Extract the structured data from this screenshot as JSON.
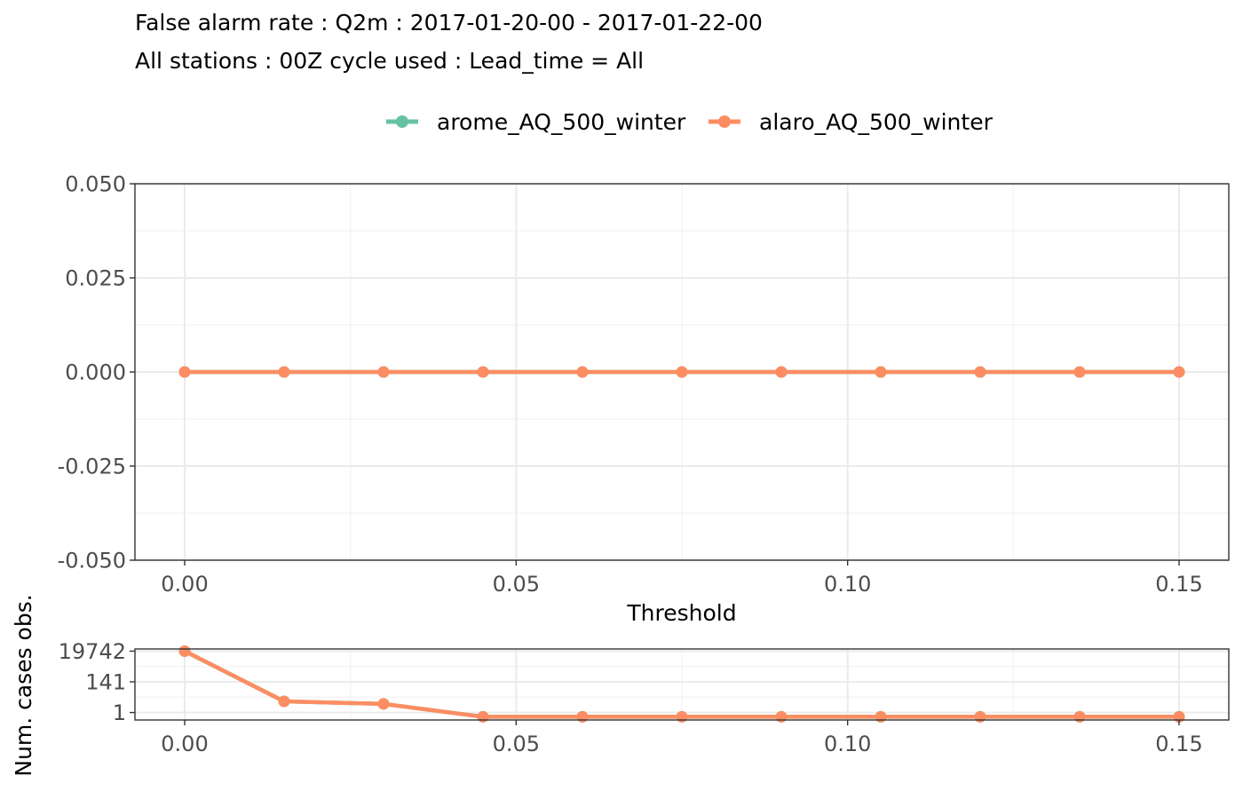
{
  "title": {
    "line1": "False alarm rate : Q2m : 2017-01-20-00 - 2017-01-22-00",
    "line2": "All stations : 00Z cycle used : Lead_time = All"
  },
  "legend": {
    "position": "top",
    "items": [
      {
        "label": "arome_AQ_500_winter",
        "color": "#66c2a5"
      },
      {
        "label": "alaro_AQ_500_winter",
        "color": "#fc8d62"
      }
    ]
  },
  "chart_data": [
    {
      "type": "line",
      "panel": "main",
      "xlabel": "Threshold",
      "ylabel": "",
      "xlim": [
        -0.0075,
        0.1575
      ],
      "ylim": [
        -0.05,
        0.05
      ],
      "x_ticks": [
        0.0,
        0.05,
        0.1,
        0.15
      ],
      "x_tick_labels": [
        "0.00",
        "0.05",
        "0.10",
        "0.15"
      ],
      "y_ticks": [
        -0.05,
        -0.025,
        0.0,
        0.025,
        0.05
      ],
      "y_tick_labels": [
        "-0.050",
        "-0.025",
        "0.000",
        "0.025",
        "0.050"
      ],
      "grid": true,
      "series": [
        {
          "name": "arome_AQ_500_winter",
          "color": "#66c2a5",
          "x": [
            0.0,
            0.015,
            0.03,
            0.045,
            0.06,
            0.075,
            0.09,
            0.105,
            0.12,
            0.135,
            0.15
          ],
          "y": [
            0,
            0,
            0,
            0,
            0,
            0,
            0,
            0,
            0,
            0,
            0
          ]
        },
        {
          "name": "alaro_AQ_500_winter",
          "color": "#fc8d62",
          "x": [
            0.0,
            0.015,
            0.03,
            0.045,
            0.06,
            0.075,
            0.09,
            0.105,
            0.12,
            0.135,
            0.15
          ],
          "y": [
            0,
            0,
            0,
            0,
            0,
            0,
            0,
            0,
            0,
            0,
            0
          ]
        }
      ]
    },
    {
      "type": "line",
      "panel": "counts",
      "xlabel": "",
      "ylabel": "Num. cases obs.",
      "xlim": [
        -0.0075,
        0.1575
      ],
      "ylim": [
        0.3,
        28000
      ],
      "yscale": "log",
      "x_ticks": [
        0.0,
        0.05,
        0.1,
        0.15
      ],
      "x_tick_labels": [
        "0.00",
        "0.05",
        "0.10",
        "0.15"
      ],
      "y_ticks": [
        1,
        141,
        19742
      ],
      "y_tick_labels": [
        "1",
        "141",
        "19742"
      ],
      "grid": true,
      "series": [
        {
          "name": "arome_AQ_500_winter",
          "color": "#66c2a5",
          "x": [
            0.0,
            0.015,
            0.03,
            0.045,
            0.06,
            0.075,
            0.09,
            0.105,
            0.12,
            0.135,
            0.15
          ],
          "y": [
            19742,
            6,
            4,
            0.5,
            0.5,
            0.5,
            0.5,
            0.5,
            0.5,
            0.5,
            0.5
          ]
        },
        {
          "name": "alaro_AQ_500_winter",
          "color": "#fc8d62",
          "x": [
            0.0,
            0.015,
            0.03,
            0.045,
            0.06,
            0.075,
            0.09,
            0.105,
            0.12,
            0.135,
            0.15
          ],
          "y": [
            19742,
            6,
            4,
            0.5,
            0.5,
            0.5,
            0.5,
            0.5,
            0.5,
            0.5,
            0.5
          ]
        }
      ]
    }
  ]
}
